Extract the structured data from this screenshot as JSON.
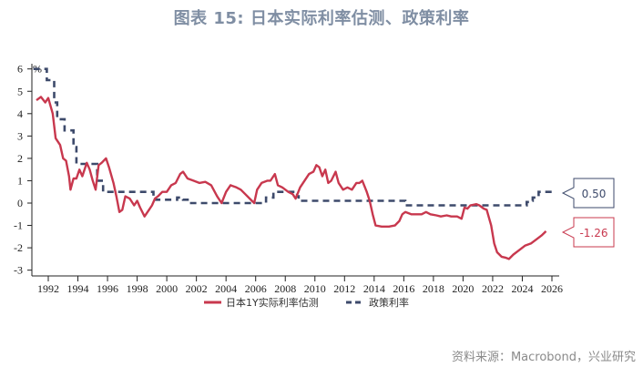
{
  "title": "图表 15: 日本实际利率估测、政策利率",
  "source": "资料来源：Macrobond，兴业研究",
  "colors": {
    "real_rate": "#c8384e",
    "policy_rate": "#3d4a6b",
    "title": "#7f8ea3"
  },
  "chart_data": {
    "type": "line",
    "title": "图表 15: 日本实际利率估测、政策利率",
    "xlabel": "",
    "ylabel": "%",
    "xlim": [
      1991,
      2026.5
    ],
    "ylim": [
      -3.3,
      6.2
    ],
    "grid": false,
    "legend_position": "bottom",
    "x_ticks": [
      "1992",
      "1994",
      "1996",
      "1998",
      "2000",
      "2002",
      "2004",
      "2006",
      "2008",
      "2010",
      "2012",
      "2014",
      "2016",
      "2018",
      "2020",
      "2022",
      "2024",
      "2026"
    ],
    "y_ticks": [
      "6",
      "5",
      "4",
      "3",
      "2",
      "1",
      "0",
      "-1",
      "-2",
      "-3"
    ],
    "series": [
      {
        "name": "日本1Y实际利率估测",
        "style": "solid",
        "last_value_label": "-1.26",
        "points": [
          [
            1991.2,
            4.6
          ],
          [
            1991.5,
            4.75
          ],
          [
            1991.8,
            4.5
          ],
          [
            1992.0,
            4.7
          ],
          [
            1992.3,
            4.0
          ],
          [
            1992.5,
            2.9
          ],
          [
            1992.8,
            2.6
          ],
          [
            1993.0,
            2.0
          ],
          [
            1993.2,
            1.9
          ],
          [
            1993.4,
            1.2
          ],
          [
            1993.5,
            0.6
          ],
          [
            1993.7,
            1.1
          ],
          [
            1993.9,
            1.1
          ],
          [
            1994.1,
            1.5
          ],
          [
            1994.3,
            1.2
          ],
          [
            1994.6,
            1.8
          ],
          [
            1994.8,
            1.5
          ],
          [
            1995.0,
            1.0
          ],
          [
            1995.2,
            0.6
          ],
          [
            1995.4,
            1.7
          ],
          [
            1995.6,
            1.8
          ],
          [
            1995.9,
            2.0
          ],
          [
            1996.1,
            1.6
          ],
          [
            1996.4,
            0.9
          ],
          [
            1996.6,
            0.3
          ],
          [
            1996.8,
            -0.4
          ],
          [
            1997.0,
            -0.3
          ],
          [
            1997.2,
            0.3
          ],
          [
            1997.5,
            0.2
          ],
          [
            1997.8,
            -0.1
          ],
          [
            1998.0,
            0.1
          ],
          [
            1998.2,
            -0.2
          ],
          [
            1998.5,
            -0.6
          ],
          [
            1998.8,
            -0.3
          ],
          [
            1999.0,
            -0.1
          ],
          [
            1999.2,
            0.2
          ],
          [
            1999.4,
            0.3
          ],
          [
            1999.7,
            0.5
          ],
          [
            2000.0,
            0.5
          ],
          [
            2000.3,
            0.8
          ],
          [
            2000.6,
            0.9
          ],
          [
            2000.9,
            1.3
          ],
          [
            2001.1,
            1.4
          ],
          [
            2001.4,
            1.1
          ],
          [
            2001.8,
            1.0
          ],
          [
            2002.2,
            0.9
          ],
          [
            2002.6,
            0.95
          ],
          [
            2003.0,
            0.8
          ],
          [
            2003.4,
            0.3
          ],
          [
            2003.7,
            0.0
          ],
          [
            2004.0,
            0.5
          ],
          [
            2004.3,
            0.8
          ],
          [
            2004.7,
            0.7
          ],
          [
            2005.0,
            0.6
          ],
          [
            2005.3,
            0.4
          ],
          [
            2005.6,
            0.2
          ],
          [
            2005.9,
            0.0
          ],
          [
            2006.1,
            0.6
          ],
          [
            2006.4,
            0.9
          ],
          [
            2006.8,
            1.0
          ],
          [
            2007.0,
            1.0
          ],
          [
            2007.3,
            1.3
          ],
          [
            2007.5,
            0.8
          ],
          [
            2007.8,
            0.7
          ],
          [
            2008.2,
            0.5
          ],
          [
            2008.5,
            0.4
          ],
          [
            2008.7,
            0.2
          ],
          [
            2009.0,
            0.7
          ],
          [
            2009.3,
            1.0
          ],
          [
            2009.6,
            1.3
          ],
          [
            2009.9,
            1.4
          ],
          [
            2010.1,
            1.7
          ],
          [
            2010.3,
            1.6
          ],
          [
            2010.5,
            1.2
          ],
          [
            2010.7,
            1.5
          ],
          [
            2010.9,
            0.9
          ],
          [
            2011.1,
            1.0
          ],
          [
            2011.4,
            1.4
          ],
          [
            2011.6,
            0.9
          ],
          [
            2011.9,
            0.6
          ],
          [
            2012.2,
            0.7
          ],
          [
            2012.5,
            0.6
          ],
          [
            2012.8,
            0.9
          ],
          [
            2013.0,
            0.9
          ],
          [
            2013.2,
            1.0
          ],
          [
            2013.5,
            0.5
          ],
          [
            2013.7,
            0.1
          ],
          [
            2013.9,
            -0.5
          ],
          [
            2014.1,
            -1.0
          ],
          [
            2014.5,
            -1.05
          ],
          [
            2015.0,
            -1.05
          ],
          [
            2015.4,
            -1.0
          ],
          [
            2015.7,
            -0.8
          ],
          [
            2015.9,
            -0.5
          ],
          [
            2016.1,
            -0.4
          ],
          [
            2016.5,
            -0.5
          ],
          [
            2016.8,
            -0.5
          ],
          [
            2017.2,
            -0.5
          ],
          [
            2017.5,
            -0.4
          ],
          [
            2017.8,
            -0.5
          ],
          [
            2018.2,
            -0.55
          ],
          [
            2018.5,
            -0.6
          ],
          [
            2018.9,
            -0.55
          ],
          [
            2019.2,
            -0.6
          ],
          [
            2019.6,
            -0.6
          ],
          [
            2019.9,
            -0.7
          ],
          [
            2020.1,
            -0.2
          ],
          [
            2020.3,
            -0.25
          ],
          [
            2020.5,
            -0.1
          ],
          [
            2020.9,
            -0.05
          ],
          [
            2021.1,
            -0.1
          ],
          [
            2021.4,
            -0.25
          ],
          [
            2021.6,
            -0.3
          ],
          [
            2021.9,
            -1.0
          ],
          [
            2022.1,
            -1.8
          ],
          [
            2022.3,
            -2.2
          ],
          [
            2022.6,
            -2.4
          ],
          [
            2022.9,
            -2.45
          ],
          [
            2023.1,
            -2.5
          ],
          [
            2023.4,
            -2.3
          ],
          [
            2023.8,
            -2.1
          ],
          [
            2024.2,
            -1.9
          ],
          [
            2024.6,
            -1.8
          ],
          [
            2025.0,
            -1.6
          ],
          [
            2025.3,
            -1.45
          ],
          [
            2025.6,
            -1.26
          ]
        ]
      },
      {
        "name": "政策利率",
        "style": "dashed",
        "last_value_label": "0.50",
        "points": [
          [
            1991.0,
            6.0
          ],
          [
            1991.5,
            6.0
          ],
          [
            1991.9,
            5.5
          ],
          [
            1992.4,
            4.5
          ],
          [
            1992.6,
            3.75
          ],
          [
            1993.1,
            3.25
          ],
          [
            1993.7,
            2.5
          ],
          [
            1993.9,
            1.75
          ],
          [
            1995.0,
            1.75
          ],
          [
            1995.3,
            1.0
          ],
          [
            1995.7,
            0.5
          ],
          [
            1998.7,
            0.5
          ],
          [
            1999.1,
            0.15
          ],
          [
            2000.7,
            0.25
          ],
          [
            2001.1,
            0.15
          ],
          [
            2001.5,
            0.0
          ],
          [
            2006.5,
            0.0
          ],
          [
            2006.7,
            0.25
          ],
          [
            2007.2,
            0.5
          ],
          [
            2008.8,
            0.3
          ],
          [
            2008.9,
            0.1
          ],
          [
            2013.0,
            0.1
          ],
          [
            2016.0,
            0.1
          ],
          [
            2016.1,
            -0.1
          ],
          [
            2024.1,
            -0.1
          ],
          [
            2024.3,
            0.05
          ],
          [
            2024.6,
            0.1
          ],
          [
            2024.7,
            0.25
          ],
          [
            2025.1,
            0.5
          ],
          [
            2026.0,
            0.5
          ]
        ]
      }
    ]
  },
  "legend": {
    "items": [
      {
        "label": "日本1Y实际利率估测"
      },
      {
        "label": "政策利率"
      }
    ]
  },
  "callouts": {
    "policy": "0.50",
    "real": "-1.26"
  },
  "axis": {
    "unit": "%"
  }
}
